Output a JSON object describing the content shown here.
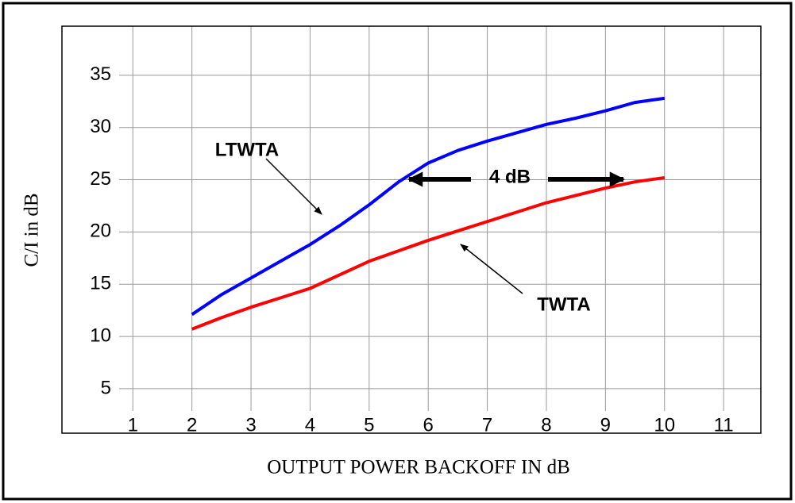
{
  "chart_data": {
    "type": "line",
    "xlabel": "OUTPUT POWER BACKOFF IN dB",
    "ylabel": "C/I in dB",
    "series": [
      {
        "name": "LTWTA",
        "color": "#0000ff",
        "x": [
          2,
          2.5,
          3,
          3.5,
          4,
          4.5,
          5,
          5.5,
          6,
          6.5,
          7,
          7.5,
          8,
          8.5,
          9,
          9.5,
          10
        ],
        "values": [
          12.1,
          14.0,
          15.6,
          17.2,
          18.8,
          20.6,
          22.6,
          24.8,
          26.6,
          27.8,
          28.7,
          29.5,
          30.3,
          30.9,
          31.6,
          32.4,
          32.8
        ]
      },
      {
        "name": "TWTA",
        "color": "#ff0000",
        "x": [
          2,
          2.5,
          3,
          3.5,
          4,
          4.5,
          5,
          5.5,
          6,
          6.5,
          7,
          7.5,
          8,
          8.5,
          9,
          9.5,
          10
        ],
        "values": [
          10.7,
          11.8,
          12.8,
          13.7,
          14.6,
          15.9,
          17.2,
          18.2,
          19.2,
          20.1,
          21.0,
          21.9,
          22.8,
          23.5,
          24.2,
          24.8,
          25.2
        ]
      }
    ],
    "annotations": [
      "4 dB"
    ],
    "xlim": [
      -0.2,
      11.63
    ],
    "xticks": [
      1,
      2,
      3,
      4,
      5,
      6,
      7,
      8,
      9,
      10,
      11
    ],
    "ylim": [
      0.74,
      39.7
    ],
    "yticks": [
      5,
      10,
      15,
      20,
      25,
      30,
      35
    ],
    "grid": true
  }
}
